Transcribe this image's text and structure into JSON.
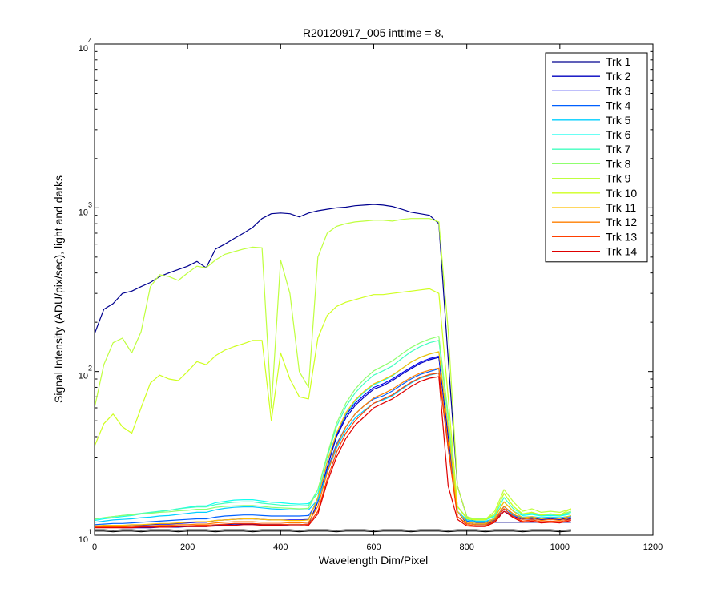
{
  "chart_data": {
    "type": "line",
    "title": "R20120917_005 inttime = 8,",
    "xlabel": "Wavelength Dim/Pixel",
    "ylabel": "Signal Intensity (ADU/pix/sec), light and darks",
    "xlim": [
      0,
      1200
    ],
    "ylim": [
      10,
      10000
    ],
    "yscale": "log",
    "grid": false,
    "legend_position": "top-right",
    "x_ticks": [
      0,
      200,
      400,
      600,
      800,
      1000,
      1200
    ],
    "x_tick_labels": [
      "0",
      "200",
      "400",
      "600",
      "800",
      "1000",
      "1200"
    ],
    "y_ticks": [
      10,
      100,
      1000,
      10000
    ],
    "y_tick_bases": [
      "10",
      "10",
      "10",
      "10"
    ],
    "y_tick_exponents": [
      "1",
      "2",
      "3",
      "4"
    ],
    "x": [
      0,
      20,
      40,
      60,
      80,
      100,
      120,
      140,
      160,
      180,
      200,
      220,
      240,
      260,
      280,
      300,
      320,
      340,
      360,
      380,
      400,
      420,
      440,
      460,
      480,
      500,
      520,
      540,
      560,
      580,
      600,
      620,
      640,
      660,
      680,
      700,
      720,
      740,
      760,
      780,
      800,
      820,
      840,
      860,
      880,
      900,
      920,
      940,
      960,
      980,
      1000,
      1024
    ],
    "series": [
      {
        "name": "Trk 1",
        "color": "#00008f",
        "values": [
          170,
          240,
          260,
          300,
          310,
          330,
          350,
          380,
          400,
          420,
          440,
          470,
          430,
          560,
          600,
          650,
          700,
          760,
          860,
          920,
          930,
          920,
          880,
          930,
          960,
          980,
          1000,
          1010,
          1030,
          1040,
          1050,
          1040,
          1020,
          980,
          940,
          920,
          900,
          800,
          120,
          20,
          13,
          12,
          12,
          12,
          12,
          12,
          12,
          12,
          12,
          12,
          12,
          12
        ]
      },
      {
        "name": "Trk 2",
        "color": "#0000bf",
        "values": [
          11.2,
          11.2,
          11.2,
          11.1,
          11.1,
          11.1,
          11.1,
          11.2,
          11.2,
          11.2,
          11.3,
          11.3,
          11.3,
          11.5,
          11.6,
          11.7,
          11.7,
          11.7,
          11.6,
          11.6,
          11.6,
          11.6,
          11.6,
          11.7,
          16,
          26,
          40,
          52,
          62,
          70,
          78,
          82,
          88,
          96,
          104,
          112,
          118,
          122,
          40,
          14,
          11.8,
          11.6,
          11.6,
          12.2,
          14,
          13,
          12.5,
          12.6,
          12.4,
          12.5,
          12.4,
          12.6
        ]
      },
      {
        "name": "Trk 3",
        "color": "#0000ef",
        "values": [
          11.4,
          11.4,
          11.5,
          11.4,
          11.4,
          11.5,
          11.6,
          11.7,
          11.7,
          11.8,
          11.9,
          12.0,
          12.0,
          12.3,
          12.4,
          12.5,
          12.6,
          12.6,
          12.5,
          12.4,
          12.4,
          12.4,
          12.4,
          12.5,
          17,
          28,
          41,
          54,
          64,
          72,
          80,
          84,
          90,
          98,
          106,
          114,
          120,
          124,
          42,
          14,
          12.0,
          11.8,
          11.8,
          12.3,
          14.5,
          13,
          12.6,
          12.7,
          12.5,
          12.6,
          12.5,
          12.8
        ]
      },
      {
        "name": "Trk 4",
        "color": "#0060ff",
        "values": [
          11.6,
          11.7,
          11.8,
          11.8,
          11.9,
          12.0,
          12.1,
          12.2,
          12.3,
          12.4,
          12.5,
          12.6,
          12.6,
          12.9,
          13.1,
          13.2,
          13.3,
          13.3,
          13.2,
          13.1,
          13.1,
          13.1,
          13.1,
          13.2,
          16,
          25,
          36,
          46,
          55,
          62,
          68,
          71,
          76,
          83,
          90,
          96,
          100,
          104,
          36,
          14,
          12.2,
          12.0,
          12.0,
          12.5,
          15,
          13.2,
          12.8,
          12.9,
          12.7,
          12.8,
          12.7,
          13.0
        ]
      },
      {
        "name": "Trk 5",
        "color": "#00cfff",
        "values": [
          12.0,
          12.2,
          12.4,
          12.5,
          12.6,
          12.8,
          12.9,
          13.1,
          13.2,
          13.4,
          13.6,
          13.8,
          13.8,
          14.3,
          14.6,
          14.8,
          14.9,
          14.9,
          14.7,
          14.5,
          14.4,
          14.3,
          14.3,
          14.3,
          16.5,
          24,
          34,
          44,
          52,
          58,
          64,
          67,
          71,
          78,
          85,
          91,
          95,
          98,
          34,
          14,
          12.4,
          12.2,
          12.2,
          12.6,
          15,
          13.3,
          12.9,
          13.0,
          12.8,
          12.9,
          12.8,
          13.1
        ]
      },
      {
        "name": "Trk 6",
        "color": "#10ffef",
        "values": [
          12.3,
          12.6,
          12.8,
          13.0,
          13.2,
          13.5,
          13.7,
          14.0,
          14.2,
          14.5,
          14.8,
          15.1,
          15.1,
          15.8,
          16.1,
          16.4,
          16.5,
          16.5,
          16.2,
          15.9,
          15.8,
          15.6,
          15.5,
          15.6,
          18,
          28,
          42,
          55,
          66,
          75,
          83,
          88,
          94,
          104,
          114,
          122,
          128,
          132,
          45,
          15,
          12.6,
          12.4,
          12.4,
          13,
          16,
          14,
          13.2,
          13.4,
          13.1,
          13.2,
          13.1,
          13.5
        ]
      },
      {
        "name": "Trk 7",
        "color": "#40ffbf",
        "values": [
          12.5,
          12.8,
          13.0,
          13.2,
          13.4,
          13.6,
          13.8,
          14.0,
          14.2,
          14.5,
          14.7,
          14.9,
          14.9,
          15.4,
          15.7,
          15.9,
          16.0,
          16.0,
          15.7,
          15.5,
          15.3,
          15.2,
          15.1,
          15.2,
          19,
          30,
          46,
          61,
          74,
          85,
          95,
          101,
          108,
          120,
          132,
          142,
          150,
          155,
          52,
          15,
          12.7,
          12.5,
          12.5,
          13.2,
          17,
          14.5,
          13.4,
          13.6,
          13.2,
          13.4,
          13.2,
          13.8
        ]
      },
      {
        "name": "Trk 8",
        "color": "#8fff6f",
        "values": [
          12.6,
          12.8,
          13.0,
          13.2,
          13.3,
          13.5,
          13.6,
          13.8,
          13.9,
          14.1,
          14.2,
          14.4,
          14.4,
          14.8,
          15.0,
          15.1,
          15.2,
          15.2,
          15.0,
          14.8,
          14.7,
          14.6,
          14.5,
          14.6,
          19,
          31,
          48,
          64,
          78,
          90,
          101,
          108,
          116,
          128,
          140,
          150,
          158,
          164,
          55,
          15,
          12.8,
          12.6,
          12.6,
          13.5,
          18,
          15,
          13.5,
          13.8,
          13.3,
          13.5,
          13.3,
          14.0
        ]
      },
      {
        "name": "Trk 9",
        "color": "#bfff3f",
        "values": [
          60,
          110,
          150,
          160,
          130,
          175,
          330,
          390,
          380,
          360,
          400,
          440,
          430,
          480,
          520,
          540,
          560,
          575,
          570,
          60,
          480,
          300,
          100,
          80,
          500,
          700,
          770,
          800,
          820,
          830,
          840,
          840,
          830,
          850,
          860,
          860,
          860,
          820,
          180,
          20,
          13,
          12.5,
          12.5,
          14,
          19,
          16,
          14,
          14.5,
          13.8,
          14,
          13.8,
          14.5
        ]
      },
      {
        "name": "Trk 10",
        "color": "#cfff20",
        "values": [
          35,
          48,
          55,
          46,
          42,
          60,
          85,
          95,
          90,
          88,
          100,
          115,
          110,
          125,
          135,
          142,
          148,
          155,
          155,
          50,
          130,
          90,
          70,
          68,
          160,
          220,
          250,
          265,
          275,
          285,
          295,
          295,
          300,
          305,
          310,
          315,
          320,
          300,
          70,
          15,
          12.6,
          12.4,
          12.4,
          13.5,
          18,
          15,
          13.5,
          13.8,
          13.3,
          13.5,
          13.3,
          14.5
        ]
      },
      {
        "name": "Trk 11",
        "color": "#ffbf00",
        "values": [
          11.4,
          11.5,
          11.5,
          11.5,
          11.6,
          11.6,
          11.7,
          11.8,
          11.8,
          11.9,
          12.0,
          12.1,
          12.1,
          12.3,
          12.4,
          12.5,
          12.6,
          12.6,
          12.5,
          12.4,
          12.4,
          12.3,
          12.3,
          12.4,
          17,
          28,
          42,
          56,
          67,
          76,
          84,
          89,
          95,
          104,
          114,
          122,
          128,
          132,
          45,
          14,
          12.0,
          11.8,
          11.8,
          12.8,
          16,
          14,
          12.8,
          13.0,
          12.6,
          12.8,
          12.6,
          13.2
        ]
      },
      {
        "name": "Trk 12",
        "color": "#ff7f00",
        "values": [
          11.3,
          11.3,
          11.3,
          11.3,
          11.4,
          11.4,
          11.4,
          11.5,
          11.5,
          11.6,
          11.6,
          11.7,
          11.7,
          11.9,
          12.0,
          12.1,
          12.1,
          12.1,
          12.0,
          12.0,
          12.0,
          11.9,
          11.9,
          12.0,
          15,
          24,
          35,
          46,
          55,
          62,
          69,
          73,
          78,
          85,
          92,
          98,
          102,
          105,
          36,
          13,
          11.8,
          11.6,
          11.6,
          12.5,
          15,
          13.5,
          12.5,
          12.7,
          12.3,
          12.5,
          12.3,
          12.8
        ]
      },
      {
        "name": "Trk 13",
        "color": "#ff3f00",
        "values": [
          11.2,
          11.2,
          11.2,
          11.2,
          11.2,
          11.3,
          11.3,
          11.3,
          11.4,
          11.4,
          11.4,
          11.5,
          11.5,
          11.6,
          11.7,
          11.8,
          11.8,
          11.8,
          11.7,
          11.7,
          11.7,
          11.6,
          11.6,
          11.7,
          14,
          22,
          32,
          42,
          50,
          57,
          64,
          68,
          72,
          79,
          86,
          92,
          96,
          98,
          34,
          13,
          11.6,
          11.4,
          11.4,
          12.2,
          14.5,
          13,
          12.2,
          12.4,
          12.1,
          12.2,
          12.1,
          12.5
        ]
      },
      {
        "name": "Trk 14",
        "color": "#df0000",
        "values": [
          11.1,
          11.1,
          11.1,
          11.1,
          11.1,
          11.2,
          11.2,
          11.2,
          11.2,
          11.3,
          11.3,
          11.3,
          11.3,
          11.4,
          11.5,
          11.5,
          11.6,
          11.6,
          11.5,
          11.5,
          11.5,
          11.4,
          11.4,
          11.5,
          13.5,
          21,
          30,
          39,
          47,
          53,
          60,
          64,
          68,
          74,
          81,
          87,
          91,
          93,
          20,
          12.5,
          11.4,
          11.3,
          11.3,
          12.0,
          14,
          12.8,
          12.0,
          12.2,
          11.9,
          12.0,
          11.9,
          12.3
        ]
      },
      {
        "values": [
          10.6,
          10.6,
          10.5,
          10.6,
          10.6,
          10.5,
          10.6,
          10.6,
          10.6,
          10.5,
          10.6,
          10.6,
          10.6,
          10.5,
          10.6,
          10.6,
          10.6,
          10.5,
          10.6,
          10.6,
          10.6,
          10.6,
          10.5,
          10.6,
          10.6,
          10.6,
          10.5,
          10.6,
          10.6,
          10.6,
          10.5,
          10.6,
          10.6,
          10.6,
          10.5,
          10.6,
          10.6,
          10.6,
          10.5,
          10.6,
          10.6,
          10.6,
          10.5,
          10.6,
          10.6,
          10.6,
          10.5,
          10.6,
          10.6,
          10.6,
          10.5,
          10.6
        ],
        "color": "#000000"
      },
      {
        "values": [
          10.8,
          10.8,
          10.7,
          10.8,
          10.8,
          10.7,
          10.8,
          10.8,
          10.8,
          10.7,
          10.8,
          10.8,
          10.8,
          10.7,
          10.8,
          10.8,
          10.8,
          10.7,
          10.8,
          10.8,
          10.8,
          10.8,
          10.7,
          10.8,
          10.8,
          10.8,
          10.7,
          10.8,
          10.8,
          10.8,
          10.7,
          10.8,
          10.8,
          10.8,
          10.7,
          10.8,
          10.8,
          10.8,
          10.7,
          10.8,
          10.8,
          10.8,
          10.7,
          10.8,
          10.8,
          10.8,
          10.7,
          10.8,
          10.8,
          10.8,
          10.7,
          10.8
        ],
        "color": "#000000"
      }
    ]
  }
}
